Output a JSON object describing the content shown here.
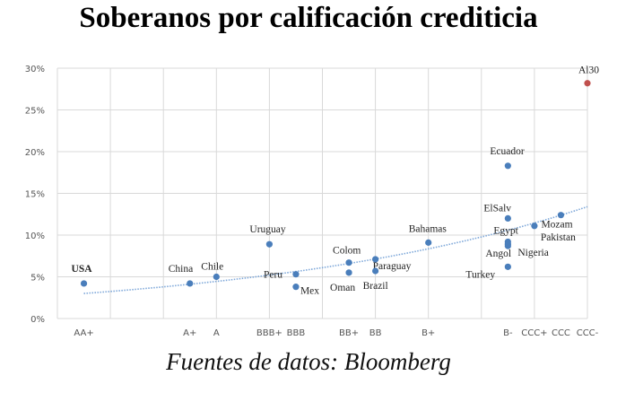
{
  "chart_data": {
    "type": "scatter",
    "title": "Soberanos por calificación crediticia",
    "source": "Fuentes de datos: Bloomberg",
    "xlabel": "",
    "ylabel": "",
    "xlim": [
      0,
      20
    ],
    "ylim": [
      0,
      30
    ],
    "grid": true,
    "legend": "none",
    "y_ticks": [
      "0%",
      "5%",
      "10%",
      "15%",
      "20%",
      "25%",
      "30%"
    ],
    "x_ticks": [
      {
        "label": "AA+",
        "pos": 1
      },
      {
        "label": "A+",
        "pos": 5
      },
      {
        "label": "A",
        "pos": 6
      },
      {
        "label": "BBB+",
        "pos": 8
      },
      {
        "label": "BBB",
        "pos": 9
      },
      {
        "label": "BB+",
        "pos": 11
      },
      {
        "label": "BB",
        "pos": 12
      },
      {
        "label": "B+",
        "pos": 14
      },
      {
        "label": "B-",
        "pos": 17
      },
      {
        "label": "CCC+",
        "pos": 18
      },
      {
        "label": "CCC",
        "pos": 19
      },
      {
        "label": "CCC-",
        "pos": 20
      }
    ],
    "points": [
      {
        "name": "USA",
        "rating": "AA+",
        "x": 1,
        "y": 4.2
      },
      {
        "name": "China",
        "rating": "A+",
        "x": 5,
        "y": 4.2
      },
      {
        "name": "Chile",
        "rating": "A",
        "x": 6,
        "y": 5.0
      },
      {
        "name": "Uruguay",
        "rating": "BBB+",
        "x": 8,
        "y": 8.9
      },
      {
        "name": "Peru",
        "rating": "BBB",
        "x": 9,
        "y": 5.3
      },
      {
        "name": "Mex",
        "rating": "BBB",
        "x": 9,
        "y": 3.8
      },
      {
        "name": "Colom",
        "rating": "BB+",
        "x": 11,
        "y": 6.7
      },
      {
        "name": "Oman",
        "rating": "BB+",
        "x": 11,
        "y": 5.5
      },
      {
        "name": "Paraguay",
        "rating": "BB",
        "x": 12,
        "y": 7.1
      },
      {
        "name": "Brazil",
        "rating": "BB",
        "x": 12,
        "y": 5.7
      },
      {
        "name": "Bahamas",
        "rating": "B+",
        "x": 14,
        "y": 9.1
      },
      {
        "name": "Ecuador",
        "rating": "B-",
        "x": 17,
        "y": 18.3
      },
      {
        "name": "ElSalv",
        "rating": "B-",
        "x": 17,
        "y": 12.0
      },
      {
        "name": "Egypt",
        "rating": "B-",
        "x": 17,
        "y": 9.2
      },
      {
        "name": "Angol",
        "rating": "B-",
        "x": 17,
        "y": 8.9
      },
      {
        "name": "Nigeria",
        "rating": "B-",
        "x": 17,
        "y": 8.7
      },
      {
        "name": "Turkey",
        "rating": "B-",
        "x": 17,
        "y": 6.2
      },
      {
        "name": "Pakistan",
        "rating": "CCC+",
        "x": 18,
        "y": 11.1
      },
      {
        "name": "Mozam",
        "rating": "CCC",
        "x": 19,
        "y": 12.4
      },
      {
        "name": "Al30",
        "rating": "CCC-",
        "x": 20,
        "y": 28.2,
        "highlight": true
      }
    ],
    "trendline": {
      "type": "exponential",
      "x_range": [
        1,
        20
      ],
      "y_start": 3.0,
      "y_end": 13.4
    },
    "colors": {
      "point": "#4a7ebb",
      "highlight": "#c0504d",
      "trend": "#7da7d9",
      "grid": "#d9d9d9"
    }
  }
}
